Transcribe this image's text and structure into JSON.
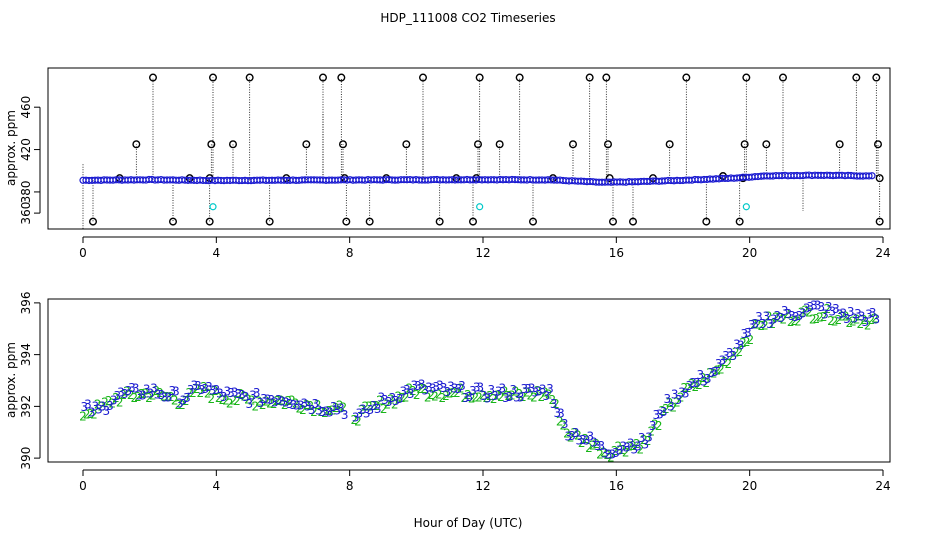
{
  "title": "HDP_111008  CO2 Timeseries",
  "xlabel": "Hour of Day (UTC)",
  "colors": {
    "ink": "#000000",
    "blue": "#1a1ad0",
    "green": "#19b419",
    "cyan": "#00c8c8"
  },
  "chart_data": [
    {
      "type": "scatter",
      "name": "raw-co2-timeseries",
      "ylabel": "approx. ppm",
      "xlim": [
        -0.5,
        24.8
      ],
      "ylim": [
        345,
        497
      ],
      "xticks": [
        0,
        4,
        8,
        12,
        16,
        20,
        24
      ],
      "xtick_labels": [
        "0",
        "4",
        "8",
        "12",
        "16",
        "20",
        "24"
      ],
      "yticks": [
        360,
        380,
        420,
        460
      ],
      "ytick_labels": [
        "360",
        "380",
        "420",
        "460"
      ],
      "ytick_note": "left axis shows 360, 420, 460 labels; 380 is an extra labelled tick",
      "main_series": {
        "name": "co2-main",
        "color": "blue",
        "knots": [
          [
            0,
            391
          ],
          [
            2,
            391.5
          ],
          [
            4,
            390.8
          ],
          [
            8,
            391.3
          ],
          [
            12,
            391.6
          ],
          [
            14,
            391.4
          ],
          [
            15.6,
            389
          ],
          [
            16.5,
            389.5
          ],
          [
            18,
            391
          ],
          [
            19.5,
            393
          ],
          [
            20.5,
            395.2
          ],
          [
            22,
            395.8
          ],
          [
            23.7,
            395
          ]
        ]
      },
      "flagged_high_values": [
        {
          "x": 0.0,
          "top": 407,
          "marker": false
        },
        {
          "x": 1.1,
          "top": 393,
          "marker": true
        },
        {
          "x": 1.6,
          "top": 425,
          "marker": true
        },
        {
          "x": 2.1,
          "top": 488,
          "marker": true
        },
        {
          "x": 3.2,
          "top": 393,
          "marker": true
        },
        {
          "x": 3.8,
          "top": 393,
          "marker": true
        },
        {
          "x": 3.85,
          "top": 425,
          "marker": true
        },
        {
          "x": 3.9,
          "top": 488,
          "marker": true
        },
        {
          "x": 4.5,
          "top": 425,
          "marker": true
        },
        {
          "x": 5.0,
          "top": 488,
          "marker": true
        },
        {
          "x": 6.1,
          "top": 393,
          "marker": true
        },
        {
          "x": 6.7,
          "top": 425,
          "marker": true
        },
        {
          "x": 7.2,
          "top": 488,
          "marker": true
        },
        {
          "x": 7.2,
          "top": 455,
          "marker": false
        },
        {
          "x": 7.75,
          "top": 488,
          "marker": true
        },
        {
          "x": 7.8,
          "top": 425,
          "marker": true
        },
        {
          "x": 7.85,
          "top": 393,
          "marker": true
        },
        {
          "x": 9.1,
          "top": 393,
          "marker": true
        },
        {
          "x": 9.7,
          "top": 425,
          "marker": true
        },
        {
          "x": 10.2,
          "top": 446,
          "marker": false
        },
        {
          "x": 10.2,
          "top": 488,
          "marker": true
        },
        {
          "x": 11.2,
          "top": 393,
          "marker": true
        },
        {
          "x": 11.8,
          "top": 393,
          "marker": true
        },
        {
          "x": 11.85,
          "top": 425,
          "marker": true
        },
        {
          "x": 11.9,
          "top": 488,
          "marker": true
        },
        {
          "x": 12.5,
          "top": 425,
          "marker": true
        },
        {
          "x": 13.1,
          "top": 488,
          "marker": true
        },
        {
          "x": 14.1,
          "top": 393,
          "marker": true
        },
        {
          "x": 14.7,
          "top": 425,
          "marker": true
        },
        {
          "x": 15.2,
          "top": 488,
          "marker": true
        },
        {
          "x": 15.7,
          "top": 488,
          "marker": true
        },
        {
          "x": 15.75,
          "top": 425,
          "marker": true
        },
        {
          "x": 15.8,
          "top": 393,
          "marker": true
        },
        {
          "x": 17.1,
          "top": 393,
          "marker": true
        },
        {
          "x": 17.6,
          "top": 425,
          "marker": true
        },
        {
          "x": 18.1,
          "top": 488,
          "marker": true
        },
        {
          "x": 19.2,
          "top": 395,
          "marker": true
        },
        {
          "x": 19.8,
          "top": 393,
          "marker": true
        },
        {
          "x": 19.85,
          "top": 425,
          "marker": true
        },
        {
          "x": 19.9,
          "top": 488,
          "marker": true
        },
        {
          "x": 20.5,
          "top": 425,
          "marker": true
        },
        {
          "x": 21.0,
          "top": 488,
          "marker": true
        },
        {
          "x": 22.7,
          "top": 425,
          "marker": true
        },
        {
          "x": 23.2,
          "top": 488,
          "marker": true
        },
        {
          "x": 23.8,
          "top": 488,
          "marker": true
        },
        {
          "x": 23.85,
          "top": 425,
          "marker": true
        },
        {
          "x": 23.9,
          "top": 393,
          "marker": true
        }
      ],
      "flagged_low_values": [
        {
          "x": 0.0,
          "bottom": 345,
          "marker": false
        },
        {
          "x": 0.3,
          "bottom": 352,
          "marker": true
        },
        {
          "x": 2.7,
          "bottom": 352,
          "marker": true
        },
        {
          "x": 3.8,
          "bottom": 352,
          "marker": true
        },
        {
          "x": 5.6,
          "bottom": 352,
          "marker": true
        },
        {
          "x": 7.9,
          "bottom": 352,
          "marker": true
        },
        {
          "x": 8.6,
          "bottom": 352,
          "marker": true
        },
        {
          "x": 10.7,
          "bottom": 352,
          "marker": true
        },
        {
          "x": 11.7,
          "bottom": 352,
          "marker": true
        },
        {
          "x": 13.5,
          "bottom": 352,
          "marker": true
        },
        {
          "x": 15.9,
          "bottom": 352,
          "marker": true
        },
        {
          "x": 16.5,
          "bottom": 352,
          "marker": true
        },
        {
          "x": 18.7,
          "bottom": 352,
          "marker": true
        },
        {
          "x": 19.7,
          "bottom": 352,
          "marker": true
        },
        {
          "x": 21.6,
          "bottom": 362,
          "marker": false
        },
        {
          "x": 23.9,
          "bottom": 352,
          "marker": true
        }
      ],
      "cyan_points": [
        [
          3.9,
          366
        ],
        [
          11.9,
          366
        ],
        [
          19.9,
          366
        ]
      ]
    },
    {
      "type": "scatter",
      "name": "zoomed-co2-timeseries",
      "ylabel": "approx. ppm",
      "xlim": [
        -0.5,
        24.8
      ],
      "ylim": [
        389.85,
        396.15
      ],
      "xticks": [
        0,
        4,
        8,
        12,
        16,
        20,
        24
      ],
      "xtick_labels": [
        "0",
        "4",
        "8",
        "12",
        "16",
        "20",
        "24"
      ],
      "yticks": [
        390,
        392,
        394,
        396
      ],
      "ytick_labels": [
        "390",
        "392",
        "394",
        "396"
      ],
      "gap": [
        7.9,
        8.1
      ],
      "series": [
        {
          "name": "2",
          "label": "2",
          "color": "green",
          "knots": [
            [
              0,
              391.7
            ],
            [
              0.5,
              391.9
            ],
            [
              1,
              392.3
            ],
            [
              2,
              392.5
            ],
            [
              3,
              392.2
            ],
            [
              3.6,
              392.6
            ],
            [
              4,
              392.4
            ],
            [
              5,
              392.2
            ],
            [
              6,
              392.2
            ],
            [
              7,
              392.0
            ],
            [
              7.8,
              391.8
            ],
            [
              8.2,
              391.6
            ],
            [
              9,
              392.1
            ],
            [
              10,
              392.6
            ],
            [
              11,
              392.5
            ],
            [
              12,
              392.5
            ],
            [
              13,
              392.4
            ],
            [
              14,
              392.5
            ],
            [
              14.5,
              391.0
            ],
            [
              15.3,
              390.5
            ],
            [
              15.7,
              390.2
            ],
            [
              16.2,
              390.4
            ],
            [
              16.9,
              390.6
            ],
            [
              17.3,
              391.5
            ],
            [
              18,
              392.5
            ],
            [
              19,
              393.3
            ],
            [
              19.7,
              394.3
            ],
            [
              20.3,
              395.2
            ],
            [
              21,
              395.4
            ],
            [
              22,
              395.6
            ],
            [
              23,
              395.4
            ],
            [
              23.8,
              395.3
            ]
          ]
        },
        {
          "name": "3",
          "label": "3",
          "color": "blue",
          "knots": [
            [
              0,
              391.9
            ],
            [
              0.5,
              391.8
            ],
            [
              1,
              392.4
            ],
            [
              2,
              392.6
            ],
            [
              3,
              392.3
            ],
            [
              3.6,
              392.8
            ],
            [
              4,
              392.5
            ],
            [
              5,
              392.3
            ],
            [
              6,
              392.3
            ],
            [
              7,
              392.0
            ],
            [
              7.8,
              391.9
            ],
            [
              8.2,
              391.5
            ],
            [
              9,
              392.2
            ],
            [
              10,
              392.7
            ],
            [
              11,
              392.6
            ],
            [
              12,
              392.5
            ],
            [
              13,
              392.5
            ],
            [
              14,
              392.6
            ],
            [
              14.5,
              391.1
            ],
            [
              15.3,
              390.6
            ],
            [
              15.7,
              390.2
            ],
            [
              16.2,
              390.5
            ],
            [
              16.9,
              390.6
            ],
            [
              17.3,
              391.8
            ],
            [
              18,
              392.6
            ],
            [
              19,
              393.4
            ],
            [
              19.7,
              394.4
            ],
            [
              20.3,
              395.3
            ],
            [
              21,
              395.5
            ],
            [
              22,
              395.8
            ],
            [
              23,
              395.5
            ],
            [
              23.8,
              395.4
            ]
          ]
        }
      ]
    }
  ]
}
